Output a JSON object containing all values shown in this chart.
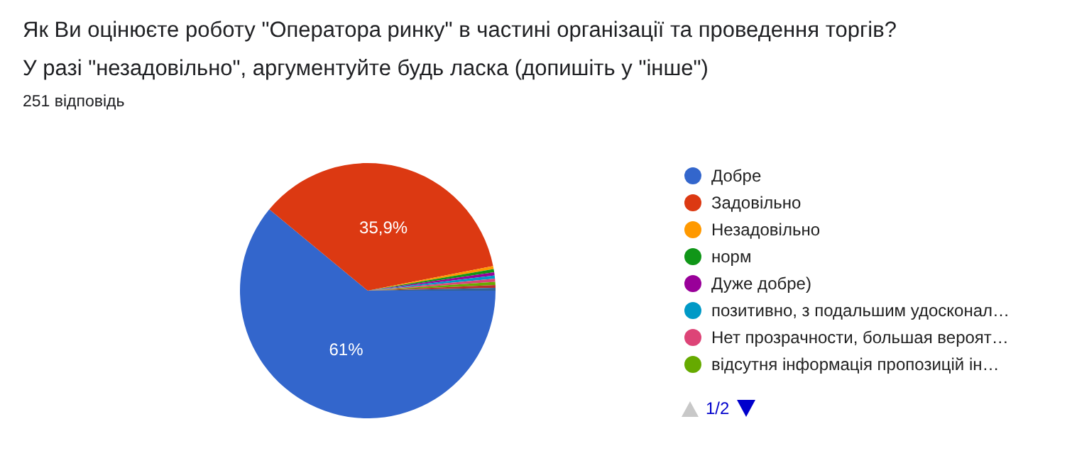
{
  "chart_data": {
    "type": "pie",
    "title": "Як Ви оцінюєте роботу \"Оператора ринку\" в частині організації та проведення торгів?\nУ разі \"незадовільно\", аргументуйте будь ласка (допишіть у \"інше\")",
    "subtitle": "251 відповідь",
    "categories": [
      "Добре",
      "Задовільно",
      "Незадовільно",
      "норм",
      "Дуже добре)",
      "позитивно, з подальшим удосконал…",
      "Нет прозрачности, большая вероят…",
      "відсутня інформація пропозицій ін…",
      null,
      null
    ],
    "values": [
      61,
      35.9,
      0.4,
      0.4,
      0.4,
      0.4,
      0.4,
      0.4,
      0.35,
      0.35
    ],
    "colors": [
      "#3366cc",
      "#dc3912",
      "#ff9900",
      "#109618",
      "#990099",
      "#0099c6",
      "#dd4477",
      "#66aa00",
      "#b82e2e",
      "#316395"
    ],
    "value_labels": [
      "61%",
      "35,9%",
      null,
      null,
      null,
      null,
      null,
      null,
      null,
      null
    ],
    "legend": "right",
    "annotations": [
      "1/2"
    ]
  }
}
